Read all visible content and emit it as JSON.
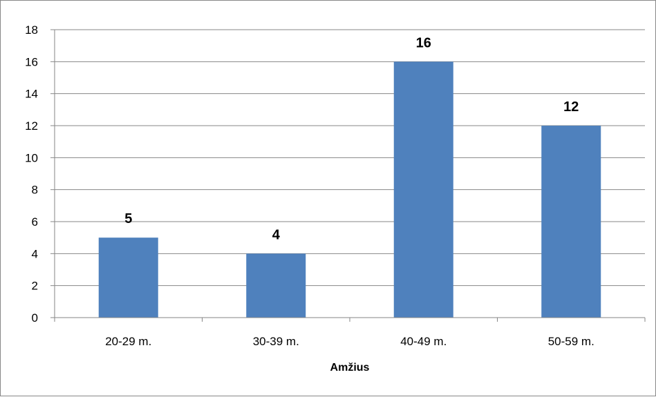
{
  "chart_data": {
    "type": "bar",
    "categories": [
      "20-29 m.",
      "30-39 m.",
      "40-49 m.",
      "50-59 m."
    ],
    "values": [
      5,
      4,
      16,
      12
    ],
    "data_labels": [
      "5",
      "4",
      "16",
      "12"
    ],
    "xlabel": "Amžius",
    "ylabel": "",
    "ylim": [
      0,
      18
    ],
    "yticks": [
      0,
      2,
      4,
      6,
      8,
      10,
      12,
      14,
      16,
      18
    ],
    "ytick_labels": [
      "0",
      "2",
      "4",
      "6",
      "8",
      "10",
      "12",
      "14",
      "16",
      "18"
    ],
    "grid": true,
    "legend": "none",
    "bar_color": "#4F81BD",
    "grid_color": "#868686"
  }
}
